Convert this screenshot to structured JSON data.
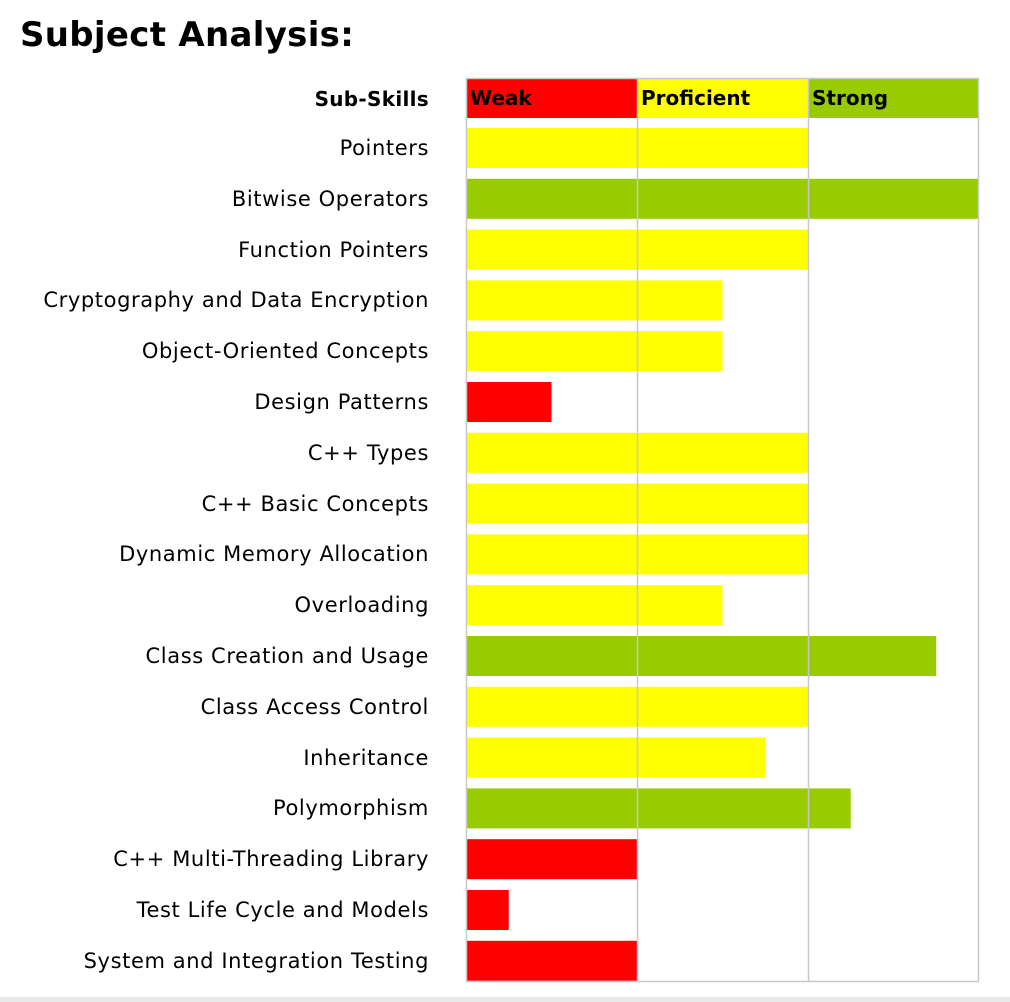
{
  "page_title": "Subject Analysis:",
  "colors": {
    "weak": "#ff0000",
    "proficient": "#ffff00",
    "strong": "#99cc00",
    "grid": "#c8c8c8"
  },
  "chart_data": {
    "type": "bar",
    "orientation": "horizontal",
    "title": "Subject Analysis:",
    "category_header": "Sub-Skills",
    "bands": [
      {
        "label": "Weak",
        "from": 0,
        "to": 1,
        "color": "#ff0000"
      },
      {
        "label": "Proficient",
        "from": 1,
        "to": 2,
        "color": "#ffff00"
      },
      {
        "label": "Strong",
        "from": 2,
        "to": 3,
        "color": "#99cc00"
      }
    ],
    "xlim": [
      0,
      3
    ],
    "grid": true,
    "categories": [
      "Pointers",
      "Bitwise Operators",
      "Function Pointers",
      "Cryptography and Data Encryption",
      "Object-Oriented Concepts",
      "Design Patterns",
      "C++ Types",
      "C++ Basic Concepts",
      "Dynamic Memory Allocation",
      "Overloading",
      "Class Creation and Usage",
      "Class Access Control",
      "Inheritance",
      "Polymorphism",
      "C++ Multi-Threading Library",
      "Test Life Cycle and Models",
      "System and Integration Testing"
    ],
    "values": [
      2.0,
      3.0,
      2.0,
      1.5,
      1.5,
      0.5,
      2.0,
      2.0,
      2.0,
      1.5,
      2.75,
      2.0,
      1.75,
      2.25,
      1.0,
      0.25,
      1.0
    ]
  }
}
